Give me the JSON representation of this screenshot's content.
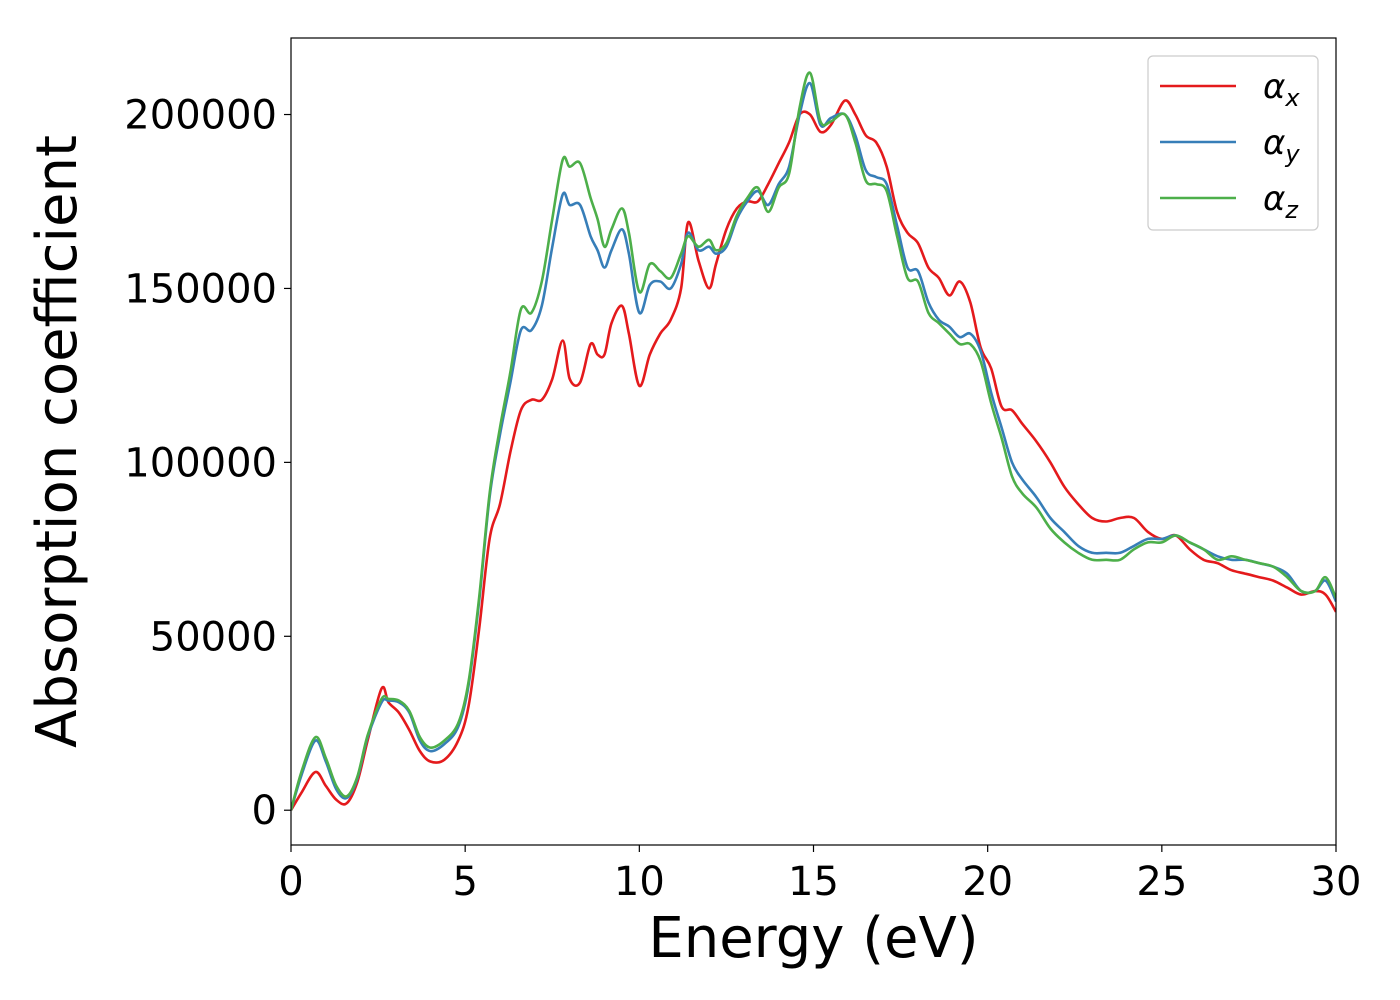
{
  "chart_data": {
    "type": "line",
    "title": "",
    "xlabel": "Energy (eV)",
    "ylabel": "Absorption coefficient",
    "xlim": [
      0,
      30
    ],
    "ylim": [
      -10000,
      222000
    ],
    "xticks": [
      0,
      5,
      10,
      15,
      20,
      25,
      30
    ],
    "yticks": [
      0,
      50000,
      100000,
      150000,
      200000
    ],
    "grid": false,
    "legend_position": "top-right",
    "series": [
      {
        "name": "α",
        "subscript": "x",
        "color": "#e41a1c",
        "x": [
          0,
          0.3,
          0.7,
          1.0,
          1.3,
          1.6,
          1.9,
          2.2,
          2.6,
          2.8,
          3.1,
          3.4,
          3.7,
          4.0,
          4.4,
          4.8,
          5.1,
          5.4,
          5.7,
          6.0,
          6.3,
          6.6,
          6.9,
          7.2,
          7.5,
          7.8,
          8.0,
          8.3,
          8.6,
          8.8,
          9.0,
          9.2,
          9.5,
          9.7,
          10.0,
          10.3,
          10.6,
          10.9,
          11.2,
          11.4,
          11.7,
          12.0,
          12.2,
          12.5,
          12.8,
          13.1,
          13.4,
          13.7,
          14.0,
          14.3,
          14.6,
          14.9,
          15.2,
          15.5,
          15.9,
          16.2,
          16.5,
          16.8,
          17.1,
          17.4,
          17.7,
          18.0,
          18.3,
          18.6,
          18.9,
          19.2,
          19.5,
          19.8,
          20.1,
          20.4,
          20.7,
          21.0,
          21.4,
          21.8,
          22.2,
          22.6,
          23.0,
          23.4,
          23.8,
          24.2,
          24.6,
          25.0,
          25.4,
          25.8,
          26.2,
          26.6,
          27.0,
          27.4,
          27.8,
          28.2,
          28.6,
          29.0,
          29.4,
          29.7,
          30.0
        ],
        "y": [
          0,
          5000,
          11000,
          7000,
          3000,
          2000,
          8000,
          20000,
          35000,
          31000,
          28000,
          23000,
          17000,
          14000,
          14500,
          20000,
          30000,
          52000,
          78000,
          88000,
          103000,
          115000,
          118000,
          118000,
          124000,
          135000,
          124000,
          123000,
          134000,
          131000,
          131000,
          140000,
          145000,
          137000,
          122000,
          131000,
          137000,
          141000,
          150000,
          169000,
          158000,
          150000,
          157000,
          167000,
          173000,
          175000,
          175000,
          180000,
          186000,
          192000,
          200000,
          200000,
          195000,
          197000,
          204000,
          200000,
          194000,
          192000,
          185000,
          172000,
          166000,
          163000,
          156000,
          153000,
          148000,
          152000,
          146000,
          133000,
          127000,
          116000,
          115000,
          111000,
          106000,
          100000,
          93000,
          88000,
          84000,
          83000,
          84000,
          84000,
          80000,
          78000,
          79000,
          75000,
          72000,
          71000,
          69000,
          68000,
          67000,
          66000,
          64000,
          62000,
          63000,
          62000,
          57000
        ]
      },
      {
        "name": "α",
        "subscript": "y",
        "color": "#377eb8",
        "x": [
          0,
          0.3,
          0.7,
          1.0,
          1.3,
          1.6,
          1.9,
          2.2,
          2.6,
          2.8,
          3.1,
          3.4,
          3.7,
          4.0,
          4.4,
          4.8,
          5.1,
          5.4,
          5.7,
          6.0,
          6.3,
          6.6,
          6.9,
          7.2,
          7.5,
          7.8,
          8.0,
          8.3,
          8.6,
          8.8,
          9.0,
          9.2,
          9.5,
          9.7,
          10.0,
          10.3,
          10.6,
          10.9,
          11.2,
          11.4,
          11.7,
          12.0,
          12.2,
          12.5,
          12.8,
          13.1,
          13.4,
          13.7,
          14.0,
          14.3,
          14.6,
          14.9,
          15.2,
          15.5,
          15.9,
          16.2,
          16.5,
          16.8,
          17.1,
          17.4,
          17.7,
          18.0,
          18.3,
          18.6,
          18.9,
          19.2,
          19.5,
          19.8,
          20.1,
          20.4,
          20.7,
          21.0,
          21.4,
          21.8,
          22.2,
          22.6,
          23.0,
          23.4,
          23.8,
          24.2,
          24.6,
          25.0,
          25.4,
          25.8,
          26.2,
          26.6,
          27.0,
          27.4,
          27.8,
          28.2,
          28.6,
          29.0,
          29.4,
          29.7,
          30.0
        ],
        "y": [
          0,
          10000,
          20000,
          14000,
          6000,
          3500,
          9000,
          21000,
          31000,
          31500,
          31000,
          28000,
          20000,
          17000,
          19000,
          24000,
          36000,
          60000,
          90000,
          108000,
          123000,
          138000,
          138000,
          145000,
          162000,
          177000,
          174000,
          174000,
          165000,
          161000,
          156000,
          161000,
          167000,
          160000,
          143000,
          151000,
          152000,
          150000,
          157000,
          166000,
          161000,
          162000,
          160000,
          162000,
          170000,
          175000,
          178000,
          174000,
          180000,
          185000,
          200000,
          209000,
          197000,
          199000,
          200000,
          194000,
          184000,
          182000,
          180000,
          168000,
          156000,
          155000,
          146000,
          141000,
          139000,
          136000,
          137000,
          132000,
          120000,
          110000,
          100000,
          95000,
          90000,
          84000,
          80000,
          76000,
          74000,
          74000,
          74000,
          76000,
          78000,
          78000,
          79000,
          77000,
          75000,
          73000,
          72000,
          72000,
          71000,
          70000,
          68000,
          63000,
          63000,
          66000,
          60000
        ]
      },
      {
        "name": "α",
        "subscript": "z",
        "color": "#4daf4a",
        "x": [
          0,
          0.3,
          0.7,
          1.0,
          1.3,
          1.6,
          1.9,
          2.2,
          2.6,
          2.8,
          3.1,
          3.4,
          3.7,
          4.0,
          4.4,
          4.8,
          5.1,
          5.4,
          5.7,
          6.0,
          6.3,
          6.6,
          6.9,
          7.2,
          7.5,
          7.8,
          8.0,
          8.3,
          8.6,
          8.8,
          9.0,
          9.2,
          9.5,
          9.7,
          10.0,
          10.3,
          10.6,
          10.9,
          11.2,
          11.4,
          11.7,
          12.0,
          12.2,
          12.5,
          12.8,
          13.1,
          13.4,
          13.7,
          14.0,
          14.3,
          14.6,
          14.9,
          15.2,
          15.5,
          15.9,
          16.2,
          16.5,
          16.8,
          17.1,
          17.4,
          17.7,
          18.0,
          18.3,
          18.6,
          18.9,
          19.2,
          19.5,
          19.8,
          20.1,
          20.4,
          20.7,
          21.0,
          21.4,
          21.8,
          22.2,
          22.6,
          23.0,
          23.4,
          23.8,
          24.2,
          24.6,
          25.0,
          25.4,
          25.8,
          26.2,
          26.6,
          27.0,
          27.4,
          27.8,
          28.2,
          28.6,
          29.0,
          29.4,
          29.7,
          30.0
        ],
        "y": [
          0,
          11000,
          21000,
          15000,
          7000,
          4000,
          9500,
          21500,
          32000,
          32000,
          31500,
          28500,
          21000,
          18000,
          20000,
          25000,
          37000,
          61000,
          91000,
          110000,
          126000,
          144000,
          143000,
          152000,
          170000,
          187000,
          185000,
          186000,
          176000,
          170000,
          162000,
          167000,
          173000,
          166000,
          149000,
          157000,
          155000,
          153000,
          160000,
          165000,
          162000,
          164000,
          161000,
          163000,
          171000,
          176000,
          179000,
          172000,
          179000,
          183000,
          202000,
          212000,
          198000,
          198000,
          200000,
          192000,
          181000,
          180000,
          178000,
          165000,
          153000,
          152000,
          143000,
          140000,
          137000,
          134000,
          134000,
          129000,
          117000,
          107000,
          96000,
          91000,
          87000,
          81000,
          77000,
          74000,
          72000,
          72000,
          72000,
          75000,
          77000,
          77000,
          79000,
          77000,
          75000,
          72000,
          73000,
          72000,
          71000,
          70000,
          67000,
          63000,
          63000,
          67000,
          61000
        ]
      }
    ]
  }
}
